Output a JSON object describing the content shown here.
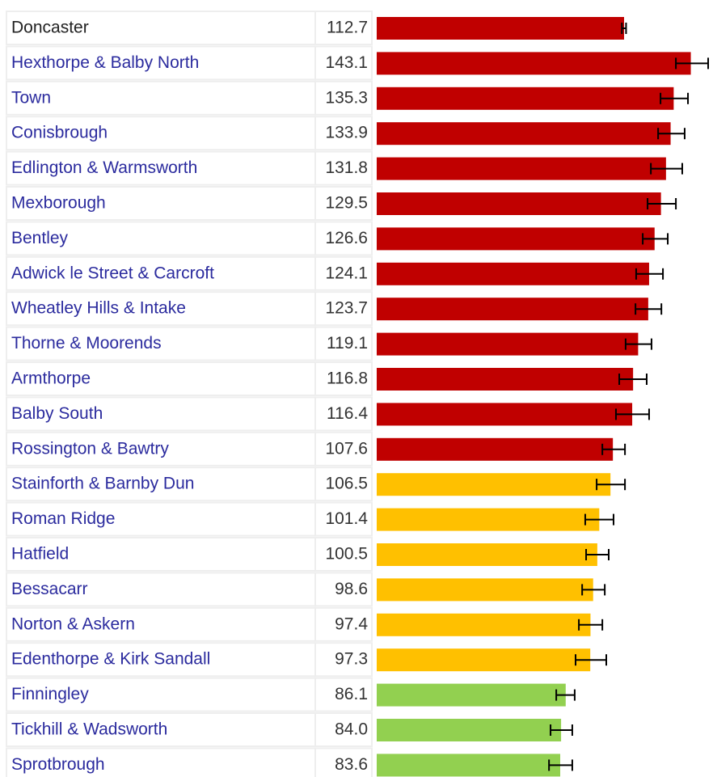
{
  "chart_data": {
    "type": "bar",
    "orientation": "horizontal",
    "categories": [
      "Doncaster",
      "Hexthorpe & Balby North",
      "Town",
      "Conisbrough",
      "Edlington & Warmsworth",
      "Mexborough",
      "Bentley",
      "Adwick le Street & Carcroft",
      "Wheatley Hills & Intake",
      "Thorne & Moorends",
      "Armthorpe",
      "Balby South",
      "Rossington & Bawtry",
      "Stainforth & Barnby Dun",
      "Roman Ridge",
      "Hatfield",
      "Bessacarr",
      "Norton & Askern",
      "Edenthorpe & Kirk Sandall",
      "Finningley",
      "Tickhill & Wadsworth",
      "Sprotbrough"
    ],
    "values": [
      112.7,
      143.1,
      135.3,
      133.9,
      131.8,
      129.5,
      126.6,
      124.1,
      123.7,
      119.1,
      116.8,
      116.4,
      107.6,
      106.5,
      101.4,
      100.5,
      98.6,
      97.4,
      97.3,
      86.1,
      84.0,
      83.6
    ],
    "value_labels": [
      "112.7",
      "143.1",
      "135.3",
      "133.9",
      "131.8",
      "129.5",
      "126.6",
      "124.1",
      "123.7",
      "119.1",
      "116.8",
      "116.4",
      "107.6",
      "106.5",
      "101.4",
      "100.5",
      "98.6",
      "97.4",
      "97.3",
      "86.1",
      "84.0",
      "83.6"
    ],
    "ci_low": [
      111.7,
      136.3,
      129.3,
      128.2,
      124.9,
      123.4,
      121.2,
      118.2,
      117.9,
      113.4,
      110.5,
      109.0,
      102.8,
      100.2,
      95.0,
      95.4,
      93.6,
      92.1,
      90.6,
      81.8,
      79.2,
      78.5
    ],
    "ci_high": [
      113.6,
      151.0,
      141.8,
      140.3,
      139.2,
      136.3,
      132.6,
      130.4,
      129.7,
      125.2,
      123.0,
      124.1,
      113.1,
      113.1,
      107.9,
      105.7,
      103.9,
      102.8,
      104.6,
      90.2,
      89.1,
      89.1
    ],
    "colors": [
      "#c00000",
      "#c00000",
      "#c00000",
      "#c00000",
      "#c00000",
      "#c00000",
      "#c00000",
      "#c00000",
      "#c00000",
      "#c00000",
      "#c00000",
      "#c00000",
      "#c00000",
      "#ffc000",
      "#ffc000",
      "#ffc000",
      "#ffc000",
      "#ffc000",
      "#ffc000",
      "#92d050",
      "#92d050",
      "#92d050"
    ]
  }
}
